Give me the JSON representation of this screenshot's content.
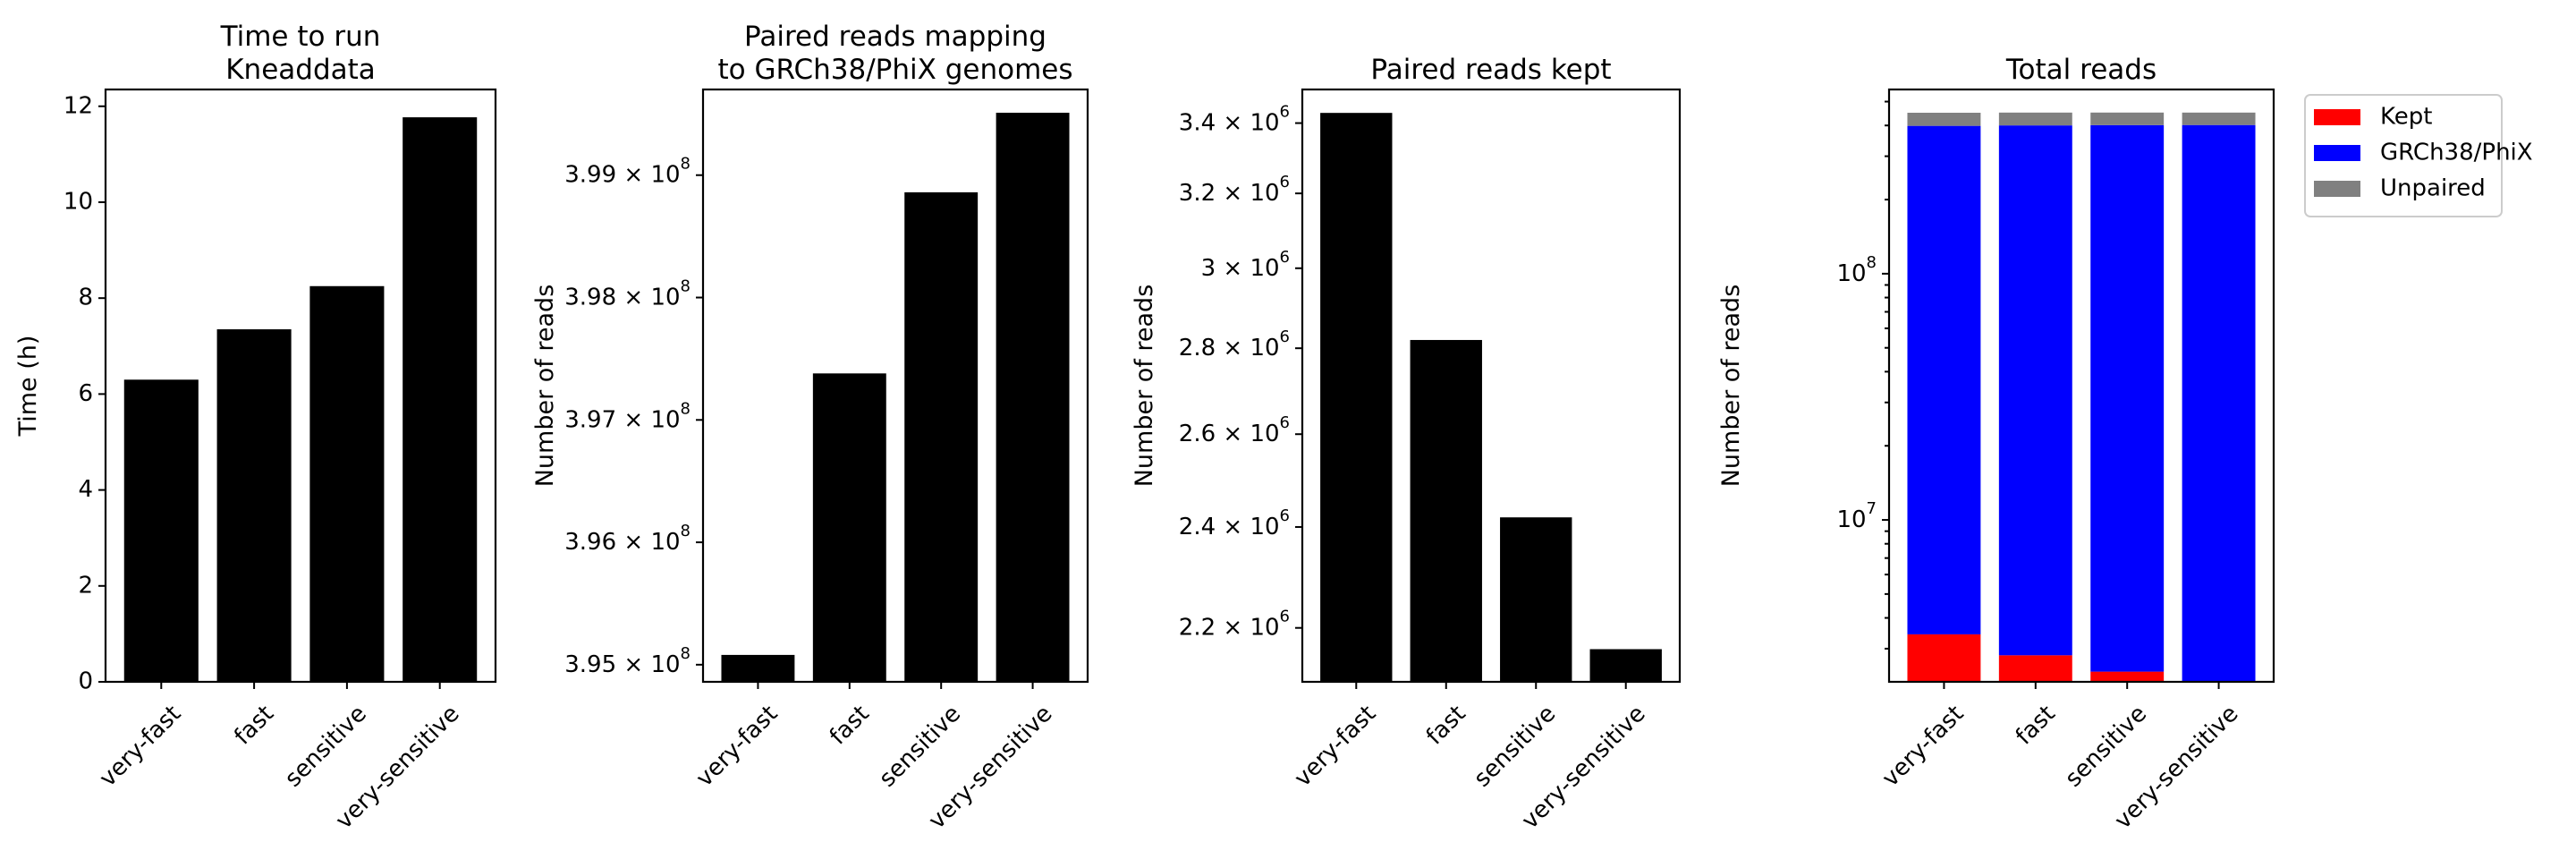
{
  "chart_data": [
    {
      "type": "bar",
      "title": [
        "Time to run",
        "Kneaddata"
      ],
      "ylabel": "Time (h)",
      "categories": [
        "very-fast",
        "fast",
        "sensitive",
        "very-sensitive"
      ],
      "values": [
        6.3,
        7.35,
        8.25,
        11.77
      ],
      "ylim": [
        0,
        12.35
      ],
      "yticks": [
        0,
        2,
        4,
        6,
        8,
        10,
        12
      ],
      "ytick_labels": [
        "0",
        "2",
        "4",
        "6",
        "8",
        "10",
        "12"
      ],
      "color": "#000000"
    },
    {
      "type": "bar",
      "title": [
        "Paired reads mapping",
        "to GRCh38/PhiX genomes"
      ],
      "ylabel": "Number of reads",
      "categories": [
        "very-fast",
        "fast",
        "sensitive",
        "very-sensitive"
      ],
      "values": [
        395080000,
        397380000,
        398860000,
        399510000
      ],
      "ylim": [
        394860000,
        399700000
      ],
      "yticks": [
        395000000,
        396000000,
        397000000,
        398000000,
        399000000
      ],
      "ytick_labels": [
        {
          "base": "3.95 × 10",
          "exp": "8"
        },
        {
          "base": "3.96 × 10",
          "exp": "8"
        },
        {
          "base": "3.97 × 10",
          "exp": "8"
        },
        {
          "base": "3.98 × 10",
          "exp": "8"
        },
        {
          "base": "3.99 × 10",
          "exp": "8"
        }
      ],
      "color": "#000000"
    },
    {
      "type": "bar",
      "title": [
        "Paired reads kept"
      ],
      "ylabel": "Number of reads",
      "categories": [
        "very-fast",
        "fast",
        "sensitive",
        "very-sensitive"
      ],
      "values": [
        3430000,
        2820000,
        2420000,
        2160000
      ],
      "ylim": [
        2100000,
        3500000
      ],
      "yscale": "log",
      "yticks": [
        2200000,
        2400000,
        2600000,
        2800000,
        3000000,
        3200000,
        3400000
      ],
      "ytick_labels": [
        {
          "base": "2.2 × 10",
          "exp": "6"
        },
        {
          "base": "2.4 × 10",
          "exp": "6"
        },
        {
          "base": "2.6 × 10",
          "exp": "6"
        },
        {
          "base": "2.8 × 10",
          "exp": "6"
        },
        {
          "base": "3 × 10",
          "exp": "6"
        },
        {
          "base": "3.2 × 10",
          "exp": "6"
        },
        {
          "base": "3.4 × 10",
          "exp": "6"
        }
      ],
      "color": "#000000"
    },
    {
      "type": "bar",
      "stacked": true,
      "title": [
        "Total reads"
      ],
      "ylabel": "Number of reads",
      "categories": [
        "very-fast",
        "fast",
        "sensitive",
        "very-sensitive"
      ],
      "yscale": "log",
      "ylim": [
        2200000,
        560000000
      ],
      "yticks": [
        10000000,
        100000000
      ],
      "ytick_labels": [
        {
          "base": "10",
          "exp": "7"
        },
        {
          "base": "10",
          "exp": "8"
        }
      ],
      "series": [
        {
          "name": "Kept",
          "color": "#ff0000",
          "values": [
            3430000,
            2820000,
            2420000,
            2160000
          ]
        },
        {
          "name": "GRCh38/PhiX",
          "color": "#0000ff",
          "values": [
            395080000,
            397380000,
            398860000,
            399510000
          ]
        },
        {
          "name": "Unpaired",
          "color": "#808080",
          "values": [
            52000000,
            51000000,
            50000000,
            49500000
          ]
        }
      ],
      "legend": "outside-right"
    }
  ]
}
